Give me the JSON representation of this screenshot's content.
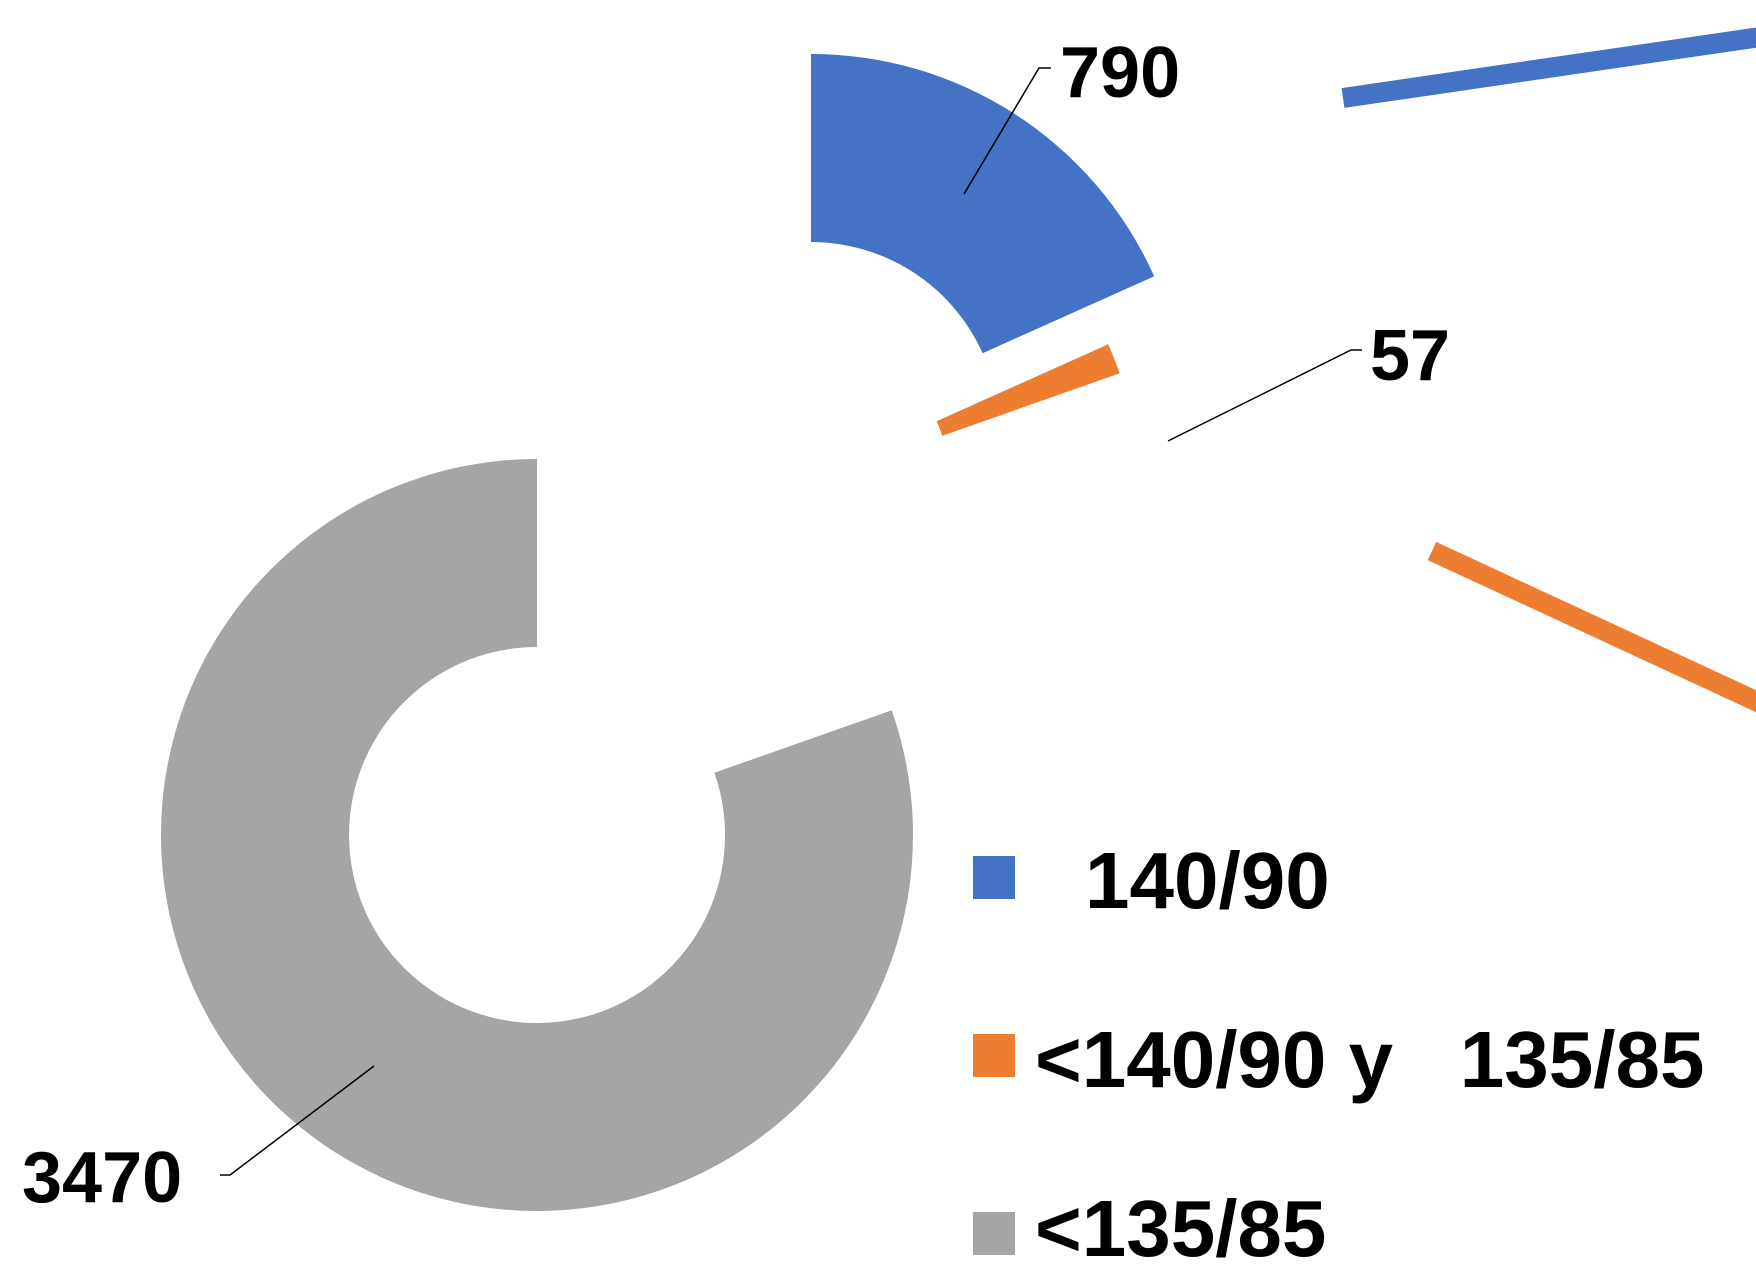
{
  "chart_data": {
    "type": "pie",
    "variant": "exploded-donut",
    "categories": [
      "140/90",
      "<140/90 y   135/85",
      "<135/85"
    ],
    "values": [
      790,
      57,
      3470
    ],
    "colors": [
      "#4472C4",
      "#ED7D31",
      "#A5A5A5"
    ],
    "data_labels": [
      "790",
      "57",
      "3470"
    ],
    "legend": {
      "placement": "right",
      "entries": [
        {
          "label": "140/90",
          "color": "#4472C4"
        },
        {
          "label": "<140/90 y   135/85",
          "color": "#ED7D31"
        },
        {
          "label": "<135/85",
          "color": "#A5A5A5"
        }
      ]
    }
  }
}
